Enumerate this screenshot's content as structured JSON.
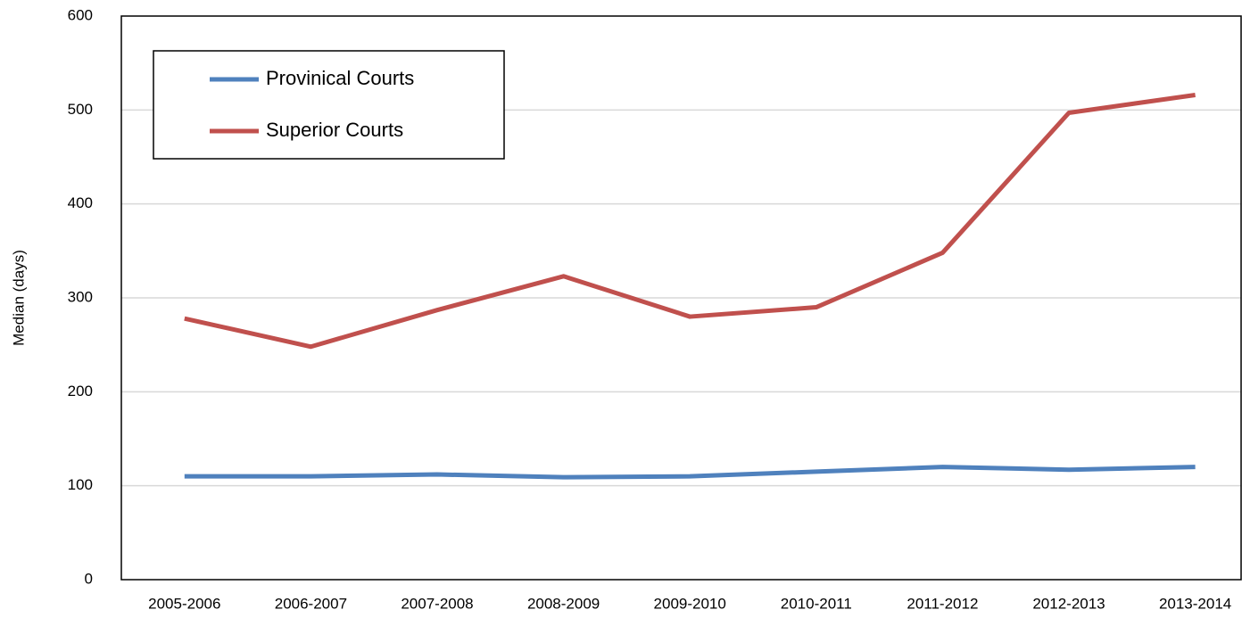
{
  "chart_data": {
    "type": "line",
    "y_label": "Median (days)",
    "categories": [
      "2005-2006",
      "2006-2007",
      "2007-2008",
      "2008-2009",
      "2009-2010",
      "2010-2011",
      "2011-2012",
      "2012-2013",
      "2013-2014"
    ],
    "series": [
      {
        "name": "Provinical Courts",
        "color": "#4f81bd",
        "values": [
          110,
          110,
          112,
          109,
          110,
          115,
          120,
          117,
          120
        ]
      },
      {
        "name": "Superior Courts",
        "color": "#c0504d",
        "values": [
          278,
          248,
          287,
          323,
          280,
          290,
          348,
          497,
          516
        ]
      }
    ],
    "ylim": [
      0,
      600
    ],
    "yticks": [
      0,
      100,
      200,
      300,
      400,
      500,
      600
    ],
    "grid": true,
    "legend": "upper left"
  }
}
